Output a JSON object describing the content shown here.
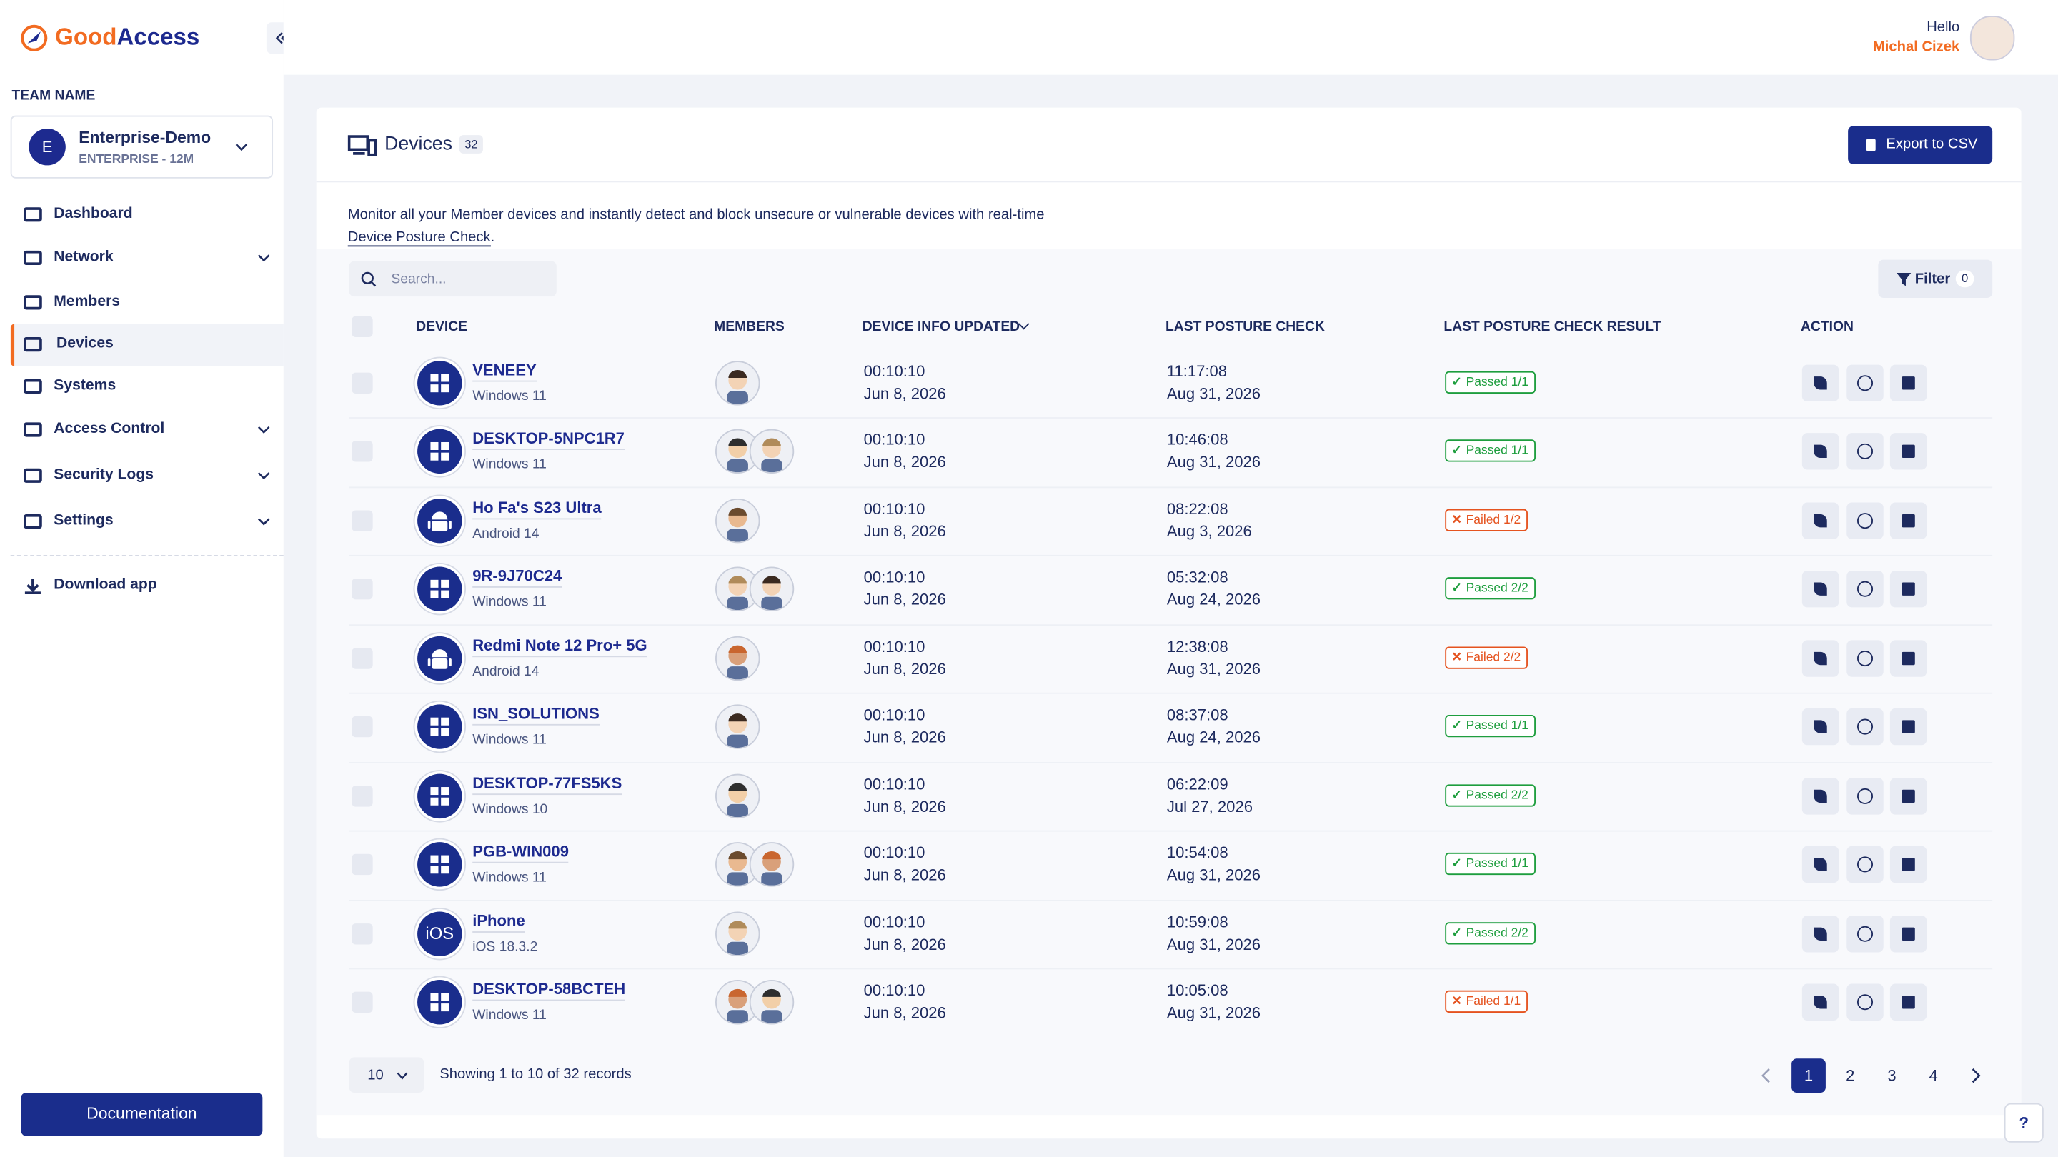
{
  "brand": [
    "Good",
    "Access"
  ],
  "sidebar": {
    "team_label": "TEAM NAME",
    "team_initial": "E",
    "team_name": "Enterprise-Demo",
    "team_plan": "ENTERPRISE - 12M",
    "nav": [
      {
        "label": "Dashboard"
      },
      {
        "label": "Network",
        "expandable": true
      },
      {
        "label": "Members"
      },
      {
        "label": "Devices",
        "active": true
      },
      {
        "label": "Systems"
      },
      {
        "label": "Access Control",
        "expandable": true
      },
      {
        "label": "Security Logs",
        "expandable": true
      },
      {
        "label": "Settings",
        "expandable": true
      }
    ],
    "download": "Download app",
    "documentation": "Documentation"
  },
  "header": {
    "greeting": "Hello",
    "user": "Michal Cizek"
  },
  "page": {
    "title": "Devices",
    "count": "32",
    "export": "Export to CSV",
    "description": "Monitor all your Member devices and instantly detect and block unsecure or vulnerable devices with real-time ",
    "description_link": "Device Posture Check",
    "description_end": ".",
    "search_placeholder": "Search...",
    "filter": "Filter",
    "filter_count": "0"
  },
  "table": {
    "columns": [
      "DEVICE",
      "MEMBERS",
      "DEVICE INFO UPDATED",
      "LAST POSTURE CHECK",
      "LAST POSTURE CHECK RESULT",
      "ACTION"
    ],
    "rows": [
      {
        "device": "VENEEY",
        "os": "Windows 11",
        "icon": "windows",
        "members": 1,
        "updated_time": "00:10:10",
        "updated_date": "Jun 8, 2026",
        "check_time": "11:17:08",
        "check_date": "Aug 31, 2026",
        "result": "Passed 1/1",
        "status": "passed"
      },
      {
        "device": "DESKTOP-5NPC1R7",
        "os": "Windows 11",
        "icon": "windows",
        "members": 2,
        "updated_time": "00:10:10",
        "updated_date": "Jun 8, 2026",
        "check_time": "10:46:08",
        "check_date": "Aug 31, 2026",
        "result": "Passed 1/1",
        "status": "passed"
      },
      {
        "device": "Ho Fa's S23 Ultra",
        "os": "Android 14",
        "icon": "android",
        "members": 1,
        "updated_time": "00:10:10",
        "updated_date": "Jun 8, 2026",
        "check_time": "08:22:08",
        "check_date": "Aug 3, 2026",
        "result": "Failed 1/2",
        "status": "failed"
      },
      {
        "device": "9R-9J70C24",
        "os": "Windows 11",
        "icon": "windows",
        "members": 2,
        "updated_time": "00:10:10",
        "updated_date": "Jun 8, 2026",
        "check_time": "05:32:08",
        "check_date": "Aug 24, 2026",
        "result": "Passed 2/2",
        "status": "passed"
      },
      {
        "device": "Redmi Note 12 Pro+ 5G",
        "os": "Android 14",
        "icon": "android",
        "members": 1,
        "updated_time": "00:10:10",
        "updated_date": "Jun 8, 2026",
        "check_time": "12:38:08",
        "check_date": "Aug 31, 2026",
        "result": "Failed 2/2",
        "status": "failed"
      },
      {
        "device": "ISN_SOLUTIONS",
        "os": "Windows 11",
        "icon": "windows",
        "members": 1,
        "updated_time": "00:10:10",
        "updated_date": "Jun 8, 2026",
        "check_time": "08:37:08",
        "check_date": "Aug 24, 2026",
        "result": "Passed 1/1",
        "status": "passed"
      },
      {
        "device": "DESKTOP-77FS5KS",
        "os": "Windows 10",
        "icon": "windows",
        "members": 1,
        "updated_time": "00:10:10",
        "updated_date": "Jun 8, 2026",
        "check_time": "06:22:09",
        "check_date": "Jul 27, 2026",
        "result": "Passed 2/2",
        "status": "passed"
      },
      {
        "device": "PGB-WIN009",
        "os": "Windows 11",
        "icon": "windows",
        "members": 2,
        "updated_time": "00:10:10",
        "updated_date": "Jun 8, 2026",
        "check_time": "10:54:08",
        "check_date": "Aug 31, 2026",
        "result": "Passed 1/1",
        "status": "passed"
      },
      {
        "device": "iPhone",
        "os": "iOS 18.3.2",
        "icon": "ios",
        "icon_text": "iOS",
        "members": 1,
        "updated_time": "00:10:10",
        "updated_date": "Jun 8, 2026",
        "check_time": "10:59:08",
        "check_date": "Aug 31, 2026",
        "result": "Passed 2/2",
        "status": "passed"
      },
      {
        "device": "DESKTOP-58BCTEH",
        "os": "Windows 11",
        "icon": "windows",
        "members": 2,
        "updated_time": "00:10:10",
        "updated_date": "Jun 8, 2026",
        "check_time": "10:05:08",
        "check_date": "Aug 31, 2026",
        "result": "Failed 1/1",
        "status": "failed"
      }
    ]
  },
  "pagination": {
    "page_size": "10",
    "info": "Showing 1 to 10 of 32 records",
    "pages": [
      "1",
      "2",
      "3",
      "4"
    ],
    "current": 0
  }
}
